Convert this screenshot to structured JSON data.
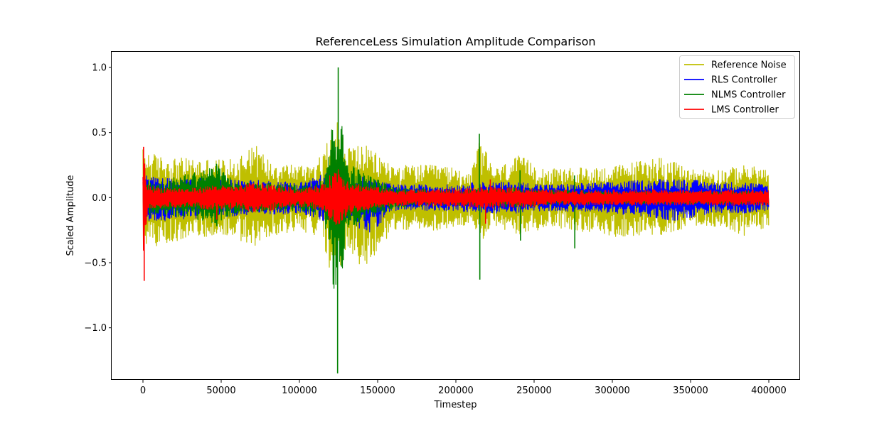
{
  "chart_data": {
    "type": "line",
    "title": "ReferenceLess Simulation Amplitude Comparison",
    "xlabel": "Timestep",
    "ylabel": "Scaled Amplitude",
    "xlim": [
      -20000,
      420000
    ],
    "ylim": [
      -1.4,
      1.12
    ],
    "x_ticks": [
      0,
      50000,
      100000,
      150000,
      200000,
      250000,
      300000,
      350000,
      400000
    ],
    "x_tick_labels": [
      "0",
      "50000",
      "100000",
      "150000",
      "200000",
      "250000",
      "300000",
      "350000",
      "400000"
    ],
    "y_ticks": [
      -1.0,
      -0.5,
      0.0,
      0.5,
      1.0
    ],
    "y_tick_labels": [
      "−1.0",
      "−0.5",
      "0.0",
      "0.5",
      "1.0"
    ],
    "grid": false,
    "legend_position": "top-right",
    "series": [
      {
        "name": "Reference Noise",
        "color": "#bfbf00",
        "envelope": {
          "x": [
            0,
            10000,
            30000,
            47000,
            60000,
            69000,
            80000,
            100000,
            115000,
            120000,
            125000,
            130000,
            140000,
            160000,
            190000,
            210000,
            215000,
            225000,
            240000,
            260000,
            300000,
            330000,
            350000,
            370000,
            385000,
            400000
          ],
          "max": [
            0.38,
            0.32,
            0.3,
            0.3,
            0.29,
            0.45,
            0.3,
            0.25,
            0.32,
            0.52,
            0.6,
            0.4,
            0.42,
            0.25,
            0.25,
            0.2,
            0.45,
            0.22,
            0.32,
            0.22,
            0.24,
            0.32,
            0.22,
            0.22,
            0.25,
            0.22
          ],
          "min": [
            -0.35,
            -0.38,
            -0.3,
            -0.3,
            -0.3,
            -0.42,
            -0.3,
            -0.25,
            -0.32,
            -0.6,
            -0.65,
            -0.4,
            -0.58,
            -0.25,
            -0.25,
            -0.2,
            -0.35,
            -0.22,
            -0.3,
            -0.22,
            -0.3,
            -0.3,
            -0.22,
            -0.22,
            -0.3,
            -0.22
          ]
        },
        "spikes": []
      },
      {
        "name": "RLS Controller",
        "color": "#0000ff",
        "envelope": {
          "x": [
            0,
            10000,
            47000,
            60000,
            100000,
            120000,
            125000,
            130000,
            145000,
            160000,
            200000,
            215000,
            240000,
            260000,
            300000,
            340000,
            365000,
            385000,
            400000
          ],
          "max": [
            0.18,
            0.15,
            0.15,
            0.14,
            0.12,
            0.2,
            0.25,
            0.18,
            0.15,
            0.1,
            0.1,
            0.12,
            0.12,
            0.1,
            0.12,
            0.15,
            0.12,
            0.12,
            0.1
          ],
          "min": [
            -0.18,
            -0.18,
            -0.15,
            -0.14,
            -0.12,
            -0.2,
            -0.25,
            -0.18,
            -0.28,
            -0.1,
            -0.1,
            -0.12,
            -0.12,
            -0.1,
            -0.12,
            -0.18,
            -0.12,
            -0.12,
            -0.1
          ]
        },
        "spikes": []
      },
      {
        "name": "NLMS Controller",
        "color": "#008000",
        "envelope": {
          "x": [
            0,
            10000,
            47000,
            60000,
            100000,
            115000,
            120000,
            122000,
            124000,
            126000,
            128000,
            130000,
            140000,
            160000,
            200000,
            240000,
            260000,
            300000,
            350000,
            400000
          ],
          "max": [
            0.15,
            0.12,
            0.25,
            0.12,
            0.1,
            0.15,
            0.45,
            0.75,
            0.6,
            0.65,
            0.5,
            0.3,
            0.2,
            0.08,
            0.06,
            0.08,
            0.06,
            0.05,
            0.05,
            0.05
          ],
          "min": [
            -0.15,
            -0.12,
            -0.2,
            -0.12,
            -0.1,
            -0.15,
            -0.45,
            -0.8,
            -0.6,
            -0.7,
            -0.55,
            -0.3,
            -0.2,
            -0.08,
            -0.06,
            -0.08,
            -0.06,
            -0.05,
            -0.05,
            -0.05
          ]
        },
        "spikes": [
          [
            124800,
            1.0
          ],
          [
            124400,
            -1.35
          ],
          [
            215000,
            0.49
          ],
          [
            215300,
            -0.63
          ],
          [
            276000,
            -0.39
          ],
          [
            275800,
            0.17
          ],
          [
            241000,
            0.21
          ],
          [
            241300,
            -0.33
          ],
          [
            47000,
            0.26
          ],
          [
            47200,
            -0.22
          ]
        ]
      },
      {
        "name": "LMS Controller",
        "color": "#ff0000",
        "envelope": {
          "x": [
            0,
            3000,
            10000,
            30000,
            47000,
            60000,
            70000,
            100000,
            115000,
            120000,
            125000,
            130000,
            140000,
            160000,
            200000,
            220000,
            240000,
            260000,
            300000,
            350000,
            400000
          ],
          "max": [
            0.38,
            0.1,
            0.08,
            0.07,
            0.1,
            0.08,
            0.12,
            0.07,
            0.1,
            0.18,
            0.25,
            0.14,
            0.1,
            0.06,
            0.07,
            0.08,
            0.08,
            0.06,
            0.06,
            0.06,
            0.06
          ],
          "min": [
            -0.62,
            -0.1,
            -0.08,
            -0.07,
            -0.1,
            -0.08,
            -0.12,
            -0.07,
            -0.1,
            -0.2,
            -0.22,
            -0.14,
            -0.1,
            -0.06,
            -0.07,
            -0.08,
            -0.08,
            -0.06,
            -0.06,
            -0.06,
            -0.06
          ]
        },
        "spikes": [
          [
            400,
            0.39
          ],
          [
            800,
            -0.64
          ],
          [
            47200,
            -0.17
          ],
          [
            222000,
            0.14
          ],
          [
            219000,
            -0.2
          ]
        ]
      }
    ]
  }
}
